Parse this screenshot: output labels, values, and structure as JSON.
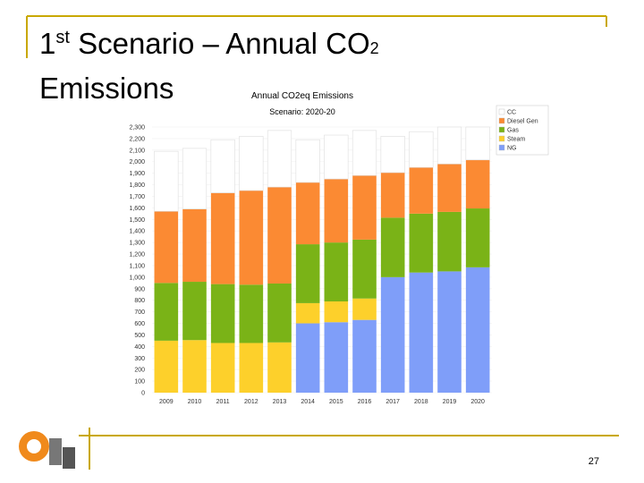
{
  "slide": {
    "title_parts": [
      "1",
      "st",
      " Scenario – Annual CO",
      "2",
      "Emissions"
    ],
    "page_number": "27"
  },
  "chart_data": {
    "type": "bar",
    "stacked": true,
    "title": "Annual CO2eq Emissions",
    "subtitle": "Scenario: 2020-20",
    "categories": [
      "2009",
      "2010",
      "2011",
      "2012",
      "2013",
      "2014",
      "2015",
      "2016",
      "2017",
      "2018",
      "2019",
      "2020"
    ],
    "series": [
      {
        "name": "NG",
        "color": "#7f9ef9",
        "values": [
          0,
          0,
          0,
          0,
          0,
          600,
          610,
          630,
          1000,
          1040,
          1050,
          1085
        ]
      },
      {
        "name": "Steam",
        "color": "#fdd02b",
        "values": [
          450,
          455,
          430,
          430,
          435,
          175,
          180,
          185,
          0,
          0,
          0,
          0
        ]
      },
      {
        "name": "Gas",
        "color": "#7ab317",
        "values": [
          500,
          505,
          510,
          505,
          510,
          510,
          510,
          510,
          515,
          510,
          515,
          510
        ]
      },
      {
        "name": "Diesel Gen",
        "color": "#fb8a33",
        "values": [
          620,
          630,
          790,
          815,
          835,
          535,
          550,
          555,
          390,
          400,
          415,
          420
        ]
      },
      {
        "name": "CC",
        "color": "#ffffff",
        "values": [
          520,
          525,
          460,
          470,
          490,
          370,
          380,
          390,
          315,
          310,
          320,
          285
        ]
      }
    ],
    "ylim": [
      0,
      2300
    ],
    "yticks": [
      0,
      100,
      200,
      300,
      400,
      500,
      600,
      700,
      800,
      900,
      {
        "value": 1000,
        "label": "1,000"
      },
      {
        "value": 1100,
        "label": "1,100"
      },
      {
        "value": 1200,
        "label": "1,200"
      },
      {
        "value": 1300,
        "label": "1,300"
      },
      {
        "value": 1400,
        "label": "1,400"
      },
      {
        "value": 1500,
        "label": "1,500"
      },
      {
        "value": 1600,
        "label": "1,600"
      },
      {
        "value": 1700,
        "label": "1,700"
      },
      {
        "value": 1800,
        "label": "1,800"
      },
      {
        "value": 1900,
        "label": "1,900"
      },
      {
        "value": 2000,
        "label": "2,000"
      },
      {
        "value": 2100,
        "label": "2,100"
      },
      {
        "value": 2200,
        "label": "2,200"
      },
      {
        "value": 2300,
        "label": "2,300"
      }
    ],
    "grid": true,
    "legend": "top-right"
  }
}
